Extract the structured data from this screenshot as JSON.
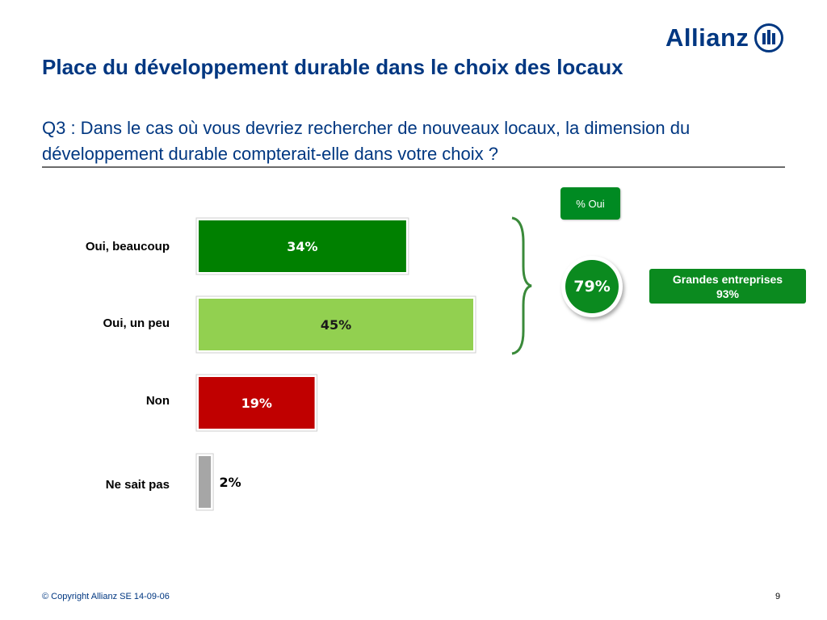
{
  "brand": {
    "name": "Allianz",
    "logo_icon": "allianz-eagle-pillars-icon",
    "color": "#003781"
  },
  "page": {
    "title": "Place du développement durable dans le choix des locaux",
    "question": "Q3 : Dans le cas où vous devriez rechercher de nouveaux locaux, la dimension du développement durable compterait-elle dans votre choix ?"
  },
  "summary": {
    "tag_label": "% Oui",
    "total": "79%",
    "total_value": 79,
    "large_companies_label": "Grandes entreprises",
    "large_companies_value": "93%"
  },
  "footer": {
    "copyright": "© Copyright Allianz SE 14-09-06",
    "page_number": "9"
  },
  "chart_data": {
    "type": "bar",
    "orientation": "horizontal",
    "categories": [
      "Oui, beaucoup",
      "Oui, un peu",
      "Non",
      "Ne sait pas"
    ],
    "values": [
      34,
      45,
      19,
      2
    ],
    "value_labels": [
      "34%",
      "45%",
      "19%",
      "2%"
    ],
    "colors": [
      "#008000",
      "#92d050",
      "#c00000",
      "#a6a6a6"
    ],
    "label_colors": [
      "#ffffff",
      "#1a1a1a",
      "#ffffff",
      "#000000"
    ],
    "xlim": [
      0,
      45
    ],
    "grid": false,
    "title": "",
    "xlabel": "",
    "ylabel": ""
  }
}
